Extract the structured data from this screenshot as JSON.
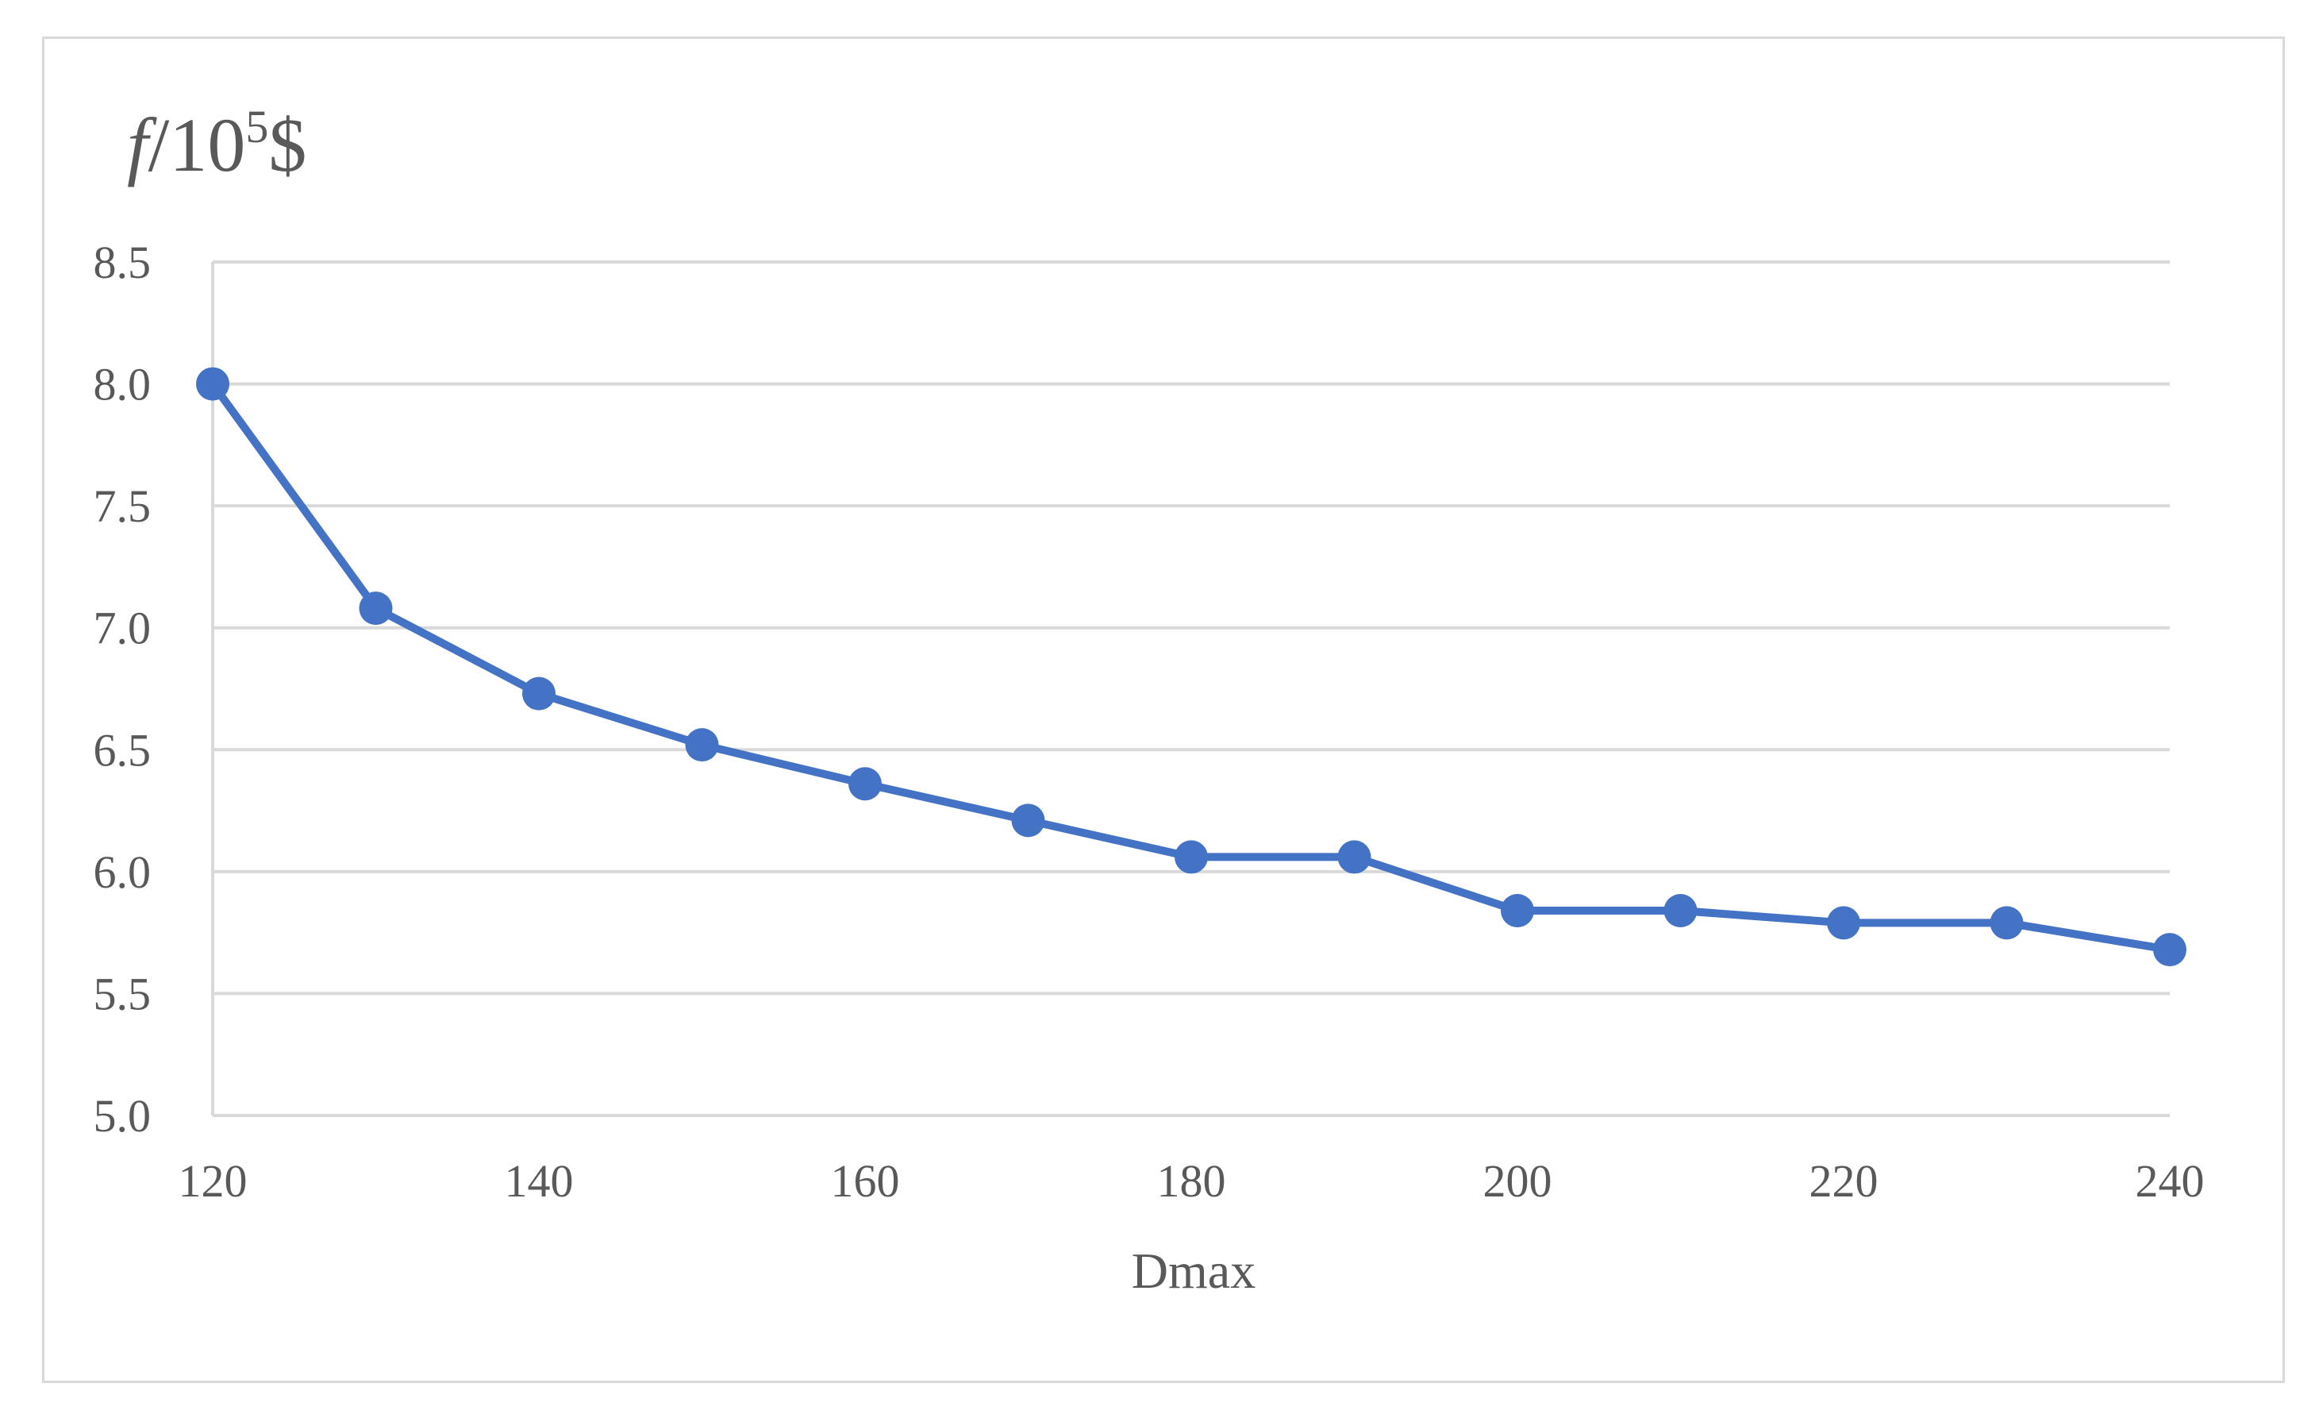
{
  "chart_data": {
    "type": "line",
    "xlabel": "Dmax",
    "ylabel": {
      "var": "f",
      "sep": "/10",
      "exp": "5",
      "unit": "$"
    },
    "x": [
      120,
      130,
      140,
      150,
      160,
      170,
      180,
      190,
      200,
      210,
      220,
      230,
      240
    ],
    "series": [
      {
        "values": [
          8.0,
          7.08,
          6.73,
          6.52,
          6.36,
          6.21,
          6.06,
          6.06,
          5.84,
          5.84,
          5.79,
          5.79,
          5.68
        ]
      }
    ],
    "xlim": [
      120,
      240
    ],
    "ylim": [
      5.0,
      8.5
    ],
    "xticks": [
      "120",
      "140",
      "160",
      "180",
      "200",
      "220",
      "240"
    ],
    "yticks": [
      "5.0",
      "5.5",
      "6.0",
      "6.5",
      "7.0",
      "7.5",
      "8.0",
      "8.5"
    ],
    "grid": true,
    "legend": "none",
    "colors": {
      "line": "#4472c4",
      "grid": "#d9d9d9",
      "text": "#595959",
      "border": "#d9d9d9"
    }
  }
}
